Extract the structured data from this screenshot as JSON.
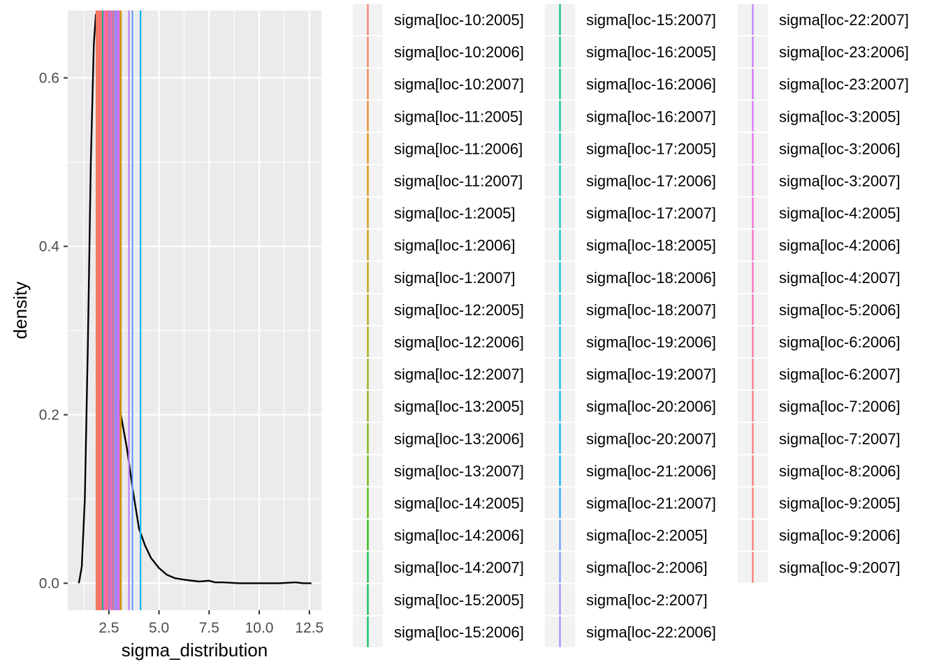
{
  "chart_data": {
    "type": "density",
    "xlabel": "sigma_distribution",
    "ylabel": "density",
    "xlim": [
      0.45,
      13.1
    ],
    "ylim": [
      -0.032,
      0.68
    ],
    "x_ticks": [
      2.5,
      5.0,
      7.5,
      10.0,
      12.5
    ],
    "x_tick_labels": [
      "2.5",
      "5.0",
      "7.5",
      "10.0",
      "12.5"
    ],
    "y_ticks": [
      0.0,
      0.2,
      0.4,
      0.6
    ],
    "y_tick_labels": [
      "0.0",
      "0.2",
      "0.4",
      "0.6"
    ],
    "grid": true,
    "panel_background": "#ebebeb",
    "grid_color": "#ffffff",
    "density_curve": {
      "color": "#000000",
      "x": [
        1.0,
        1.05,
        1.15,
        1.3,
        1.45,
        1.6,
        1.75,
        1.85,
        1.95,
        2.05,
        2.15,
        2.3,
        2.5,
        2.7,
        2.9,
        3.1,
        3.4,
        3.7,
        4.0,
        4.3,
        4.6,
        5.0,
        5.4,
        5.8,
        6.3,
        7.0,
        7.5,
        7.8,
        8.2,
        9.0,
        10.0,
        11.0,
        11.8,
        12.2,
        12.6
      ],
      "y": [
        0.0,
        0.006,
        0.02,
        0.1,
        0.28,
        0.5,
        0.64,
        0.675,
        0.675,
        0.66,
        0.63,
        0.57,
        0.45,
        0.35,
        0.24,
        0.2,
        0.16,
        0.11,
        0.065,
        0.045,
        0.03,
        0.018,
        0.01,
        0.006,
        0.004,
        0.002,
        0.003,
        0.001,
        0.001,
        0.0,
        0.0,
        0.0,
        0.001,
        0.0,
        0.0
      ]
    },
    "vlines": [
      {
        "label": "sigma[loc-10:2005]",
        "color": "#F8766D",
        "x": 1.88
      },
      {
        "label": "sigma[loc-10:2006]",
        "color": "#F37B59",
        "x": 2.05
      },
      {
        "label": "sigma[loc-10:2007]",
        "color": "#ED8141",
        "x": 1.92
      },
      {
        "label": "sigma[loc-11:2005]",
        "color": "#E7861B",
        "x": 2.1
      },
      {
        "label": "sigma[loc-11:2006]",
        "color": "#E08B00",
        "x": 3.02
      },
      {
        "label": "sigma[loc-11:2007]",
        "color": "#D89000",
        "x": 2.18
      },
      {
        "label": "sigma[loc-1:2005]",
        "color": "#CF9400",
        "x": 3.1
      },
      {
        "label": "sigma[loc-1:2006]",
        "color": "#C59900",
        "x": 2.25
      },
      {
        "label": "sigma[loc-1:2007]",
        "color": "#BB9D00",
        "x": 2.2
      },
      {
        "label": "sigma[loc-12:2005]",
        "color": "#B0A100",
        "x": 2.3
      },
      {
        "label": "sigma[loc-12:2006]",
        "color": "#A3A500",
        "x": 2.35
      },
      {
        "label": "sigma[loc-12:2007]",
        "color": "#96A900",
        "x": 2.4
      },
      {
        "label": "sigma[loc-13:2005]",
        "color": "#87AC00",
        "x": 2.28
      },
      {
        "label": "sigma[loc-13:2006]",
        "color": "#76AF00",
        "x": 2.45
      },
      {
        "label": "sigma[loc-13:2007]",
        "color": "#62B200",
        "x": 2.5
      },
      {
        "label": "sigma[loc-14:2005]",
        "color": "#49B500",
        "x": 2.15
      },
      {
        "label": "sigma[loc-14:2006]",
        "color": "#1FB700",
        "x": 2.55
      },
      {
        "label": "sigma[loc-14:2007]",
        "color": "#00BA38",
        "x": 2.6
      },
      {
        "label": "sigma[loc-15:2005]",
        "color": "#00BB4E",
        "x": 2.38
      },
      {
        "label": "sigma[loc-15:2006]",
        "color": "#00BD5F",
        "x": 2.48
      },
      {
        "label": "sigma[loc-15:2007]",
        "color": "#00BE6F",
        "x": 2.65
      },
      {
        "label": "sigma[loc-16:2005]",
        "color": "#00BF7D",
        "x": 2.2
      },
      {
        "label": "sigma[loc-16:2006]",
        "color": "#00C08B",
        "x": 2.7
      },
      {
        "label": "sigma[loc-16:2007]",
        "color": "#00C097",
        "x": 2.42
      },
      {
        "label": "sigma[loc-17:2005]",
        "color": "#00C1A3",
        "x": 2.75
      },
      {
        "label": "sigma[loc-17:2006]",
        "color": "#00C0AF",
        "x": 2.58
      },
      {
        "label": "sigma[loc-17:2007]",
        "color": "#00C0BA",
        "x": 2.8
      },
      {
        "label": "sigma[loc-18:2005]",
        "color": "#00BFC4",
        "x": 2.62
      },
      {
        "label": "sigma[loc-18:2006]",
        "color": "#00BDCE",
        "x": 2.85
      },
      {
        "label": "sigma[loc-18:2007]",
        "color": "#00BCD8",
        "x": 2.52
      },
      {
        "label": "sigma[loc-19:2006]",
        "color": "#00B9E1",
        "x": 2.9
      },
      {
        "label": "sigma[loc-19:2007]",
        "color": "#00B6EA",
        "x": 2.68
      },
      {
        "label": "sigma[loc-20:2006]",
        "color": "#00B3F2",
        "x": 4.08
      },
      {
        "label": "sigma[loc-20:2007]",
        "color": "#00AEFA",
        "x": 2.78
      },
      {
        "label": "sigma[loc-21:2006]",
        "color": "#00A9FF",
        "x": 2.95
      },
      {
        "label": "sigma[loc-21:2007]",
        "color": "#22A3FF",
        "x": 2.72
      },
      {
        "label": "sigma[loc-2:2005]",
        "color": "#619CFF",
        "x": 3.68
      },
      {
        "label": "sigma[loc-2:2006]",
        "color": "#7C96FF",
        "x": 2.88
      },
      {
        "label": "sigma[loc-2:2007]",
        "color": "#928EFF",
        "x": 2.82
      },
      {
        "label": "sigma[loc-22:2006]",
        "color": "#A586FF",
        "x": 3.0
      },
      {
        "label": "sigma[loc-22:2007]",
        "color": "#B67EFF",
        "x": 3.5
      },
      {
        "label": "sigma[loc-23:2006]",
        "color": "#C475FD",
        "x": 2.92
      },
      {
        "label": "sigma[loc-23:2007]",
        "color": "#D16BF6",
        "x": 2.98
      },
      {
        "label": "sigma[loc-3:2005]",
        "color": "#DB72FB",
        "x": 2.32
      },
      {
        "label": "sigma[loc-3:2006]",
        "color": "#E36BF0",
        "x": 2.44
      },
      {
        "label": "sigma[loc-3:2007]",
        "color": "#EB68E5",
        "x": 2.36
      },
      {
        "label": "sigma[loc-4:2005]",
        "color": "#F066D8",
        "x": 2.26
      },
      {
        "label": "sigma[loc-4:2006]",
        "color": "#F566CB",
        "x": 2.56
      },
      {
        "label": "sigma[loc-4:2007]",
        "color": "#F767BC",
        "x": 2.46
      },
      {
        "label": "sigma[loc-5:2006]",
        "color": "#FA69AD",
        "x": 2.64
      },
      {
        "label": "sigma[loc-6:2006]",
        "color": "#FC6C9D",
        "x": 2.34
      },
      {
        "label": "sigma[loc-6:2007]",
        "color": "#FC6F8D",
        "x": 2.74
      },
      {
        "label": "sigma[loc-7:2006]",
        "color": "#FB727D",
        "x": 2.12
      },
      {
        "label": "sigma[loc-7:2007]",
        "color": "#FA7476",
        "x": 2.4
      },
      {
        "label": "sigma[loc-8:2006]",
        "color": "#F87571",
        "x": 1.98
      },
      {
        "label": "sigma[loc-9:2005]",
        "color": "#F8766D",
        "x": 2.08
      },
      {
        "label": "sigma[loc-9:2006]",
        "color": "#F8766D",
        "x": 2.02
      },
      {
        "label": "sigma[loc-9:2007]",
        "color": "#F8766D",
        "x": 1.95
      }
    ]
  }
}
